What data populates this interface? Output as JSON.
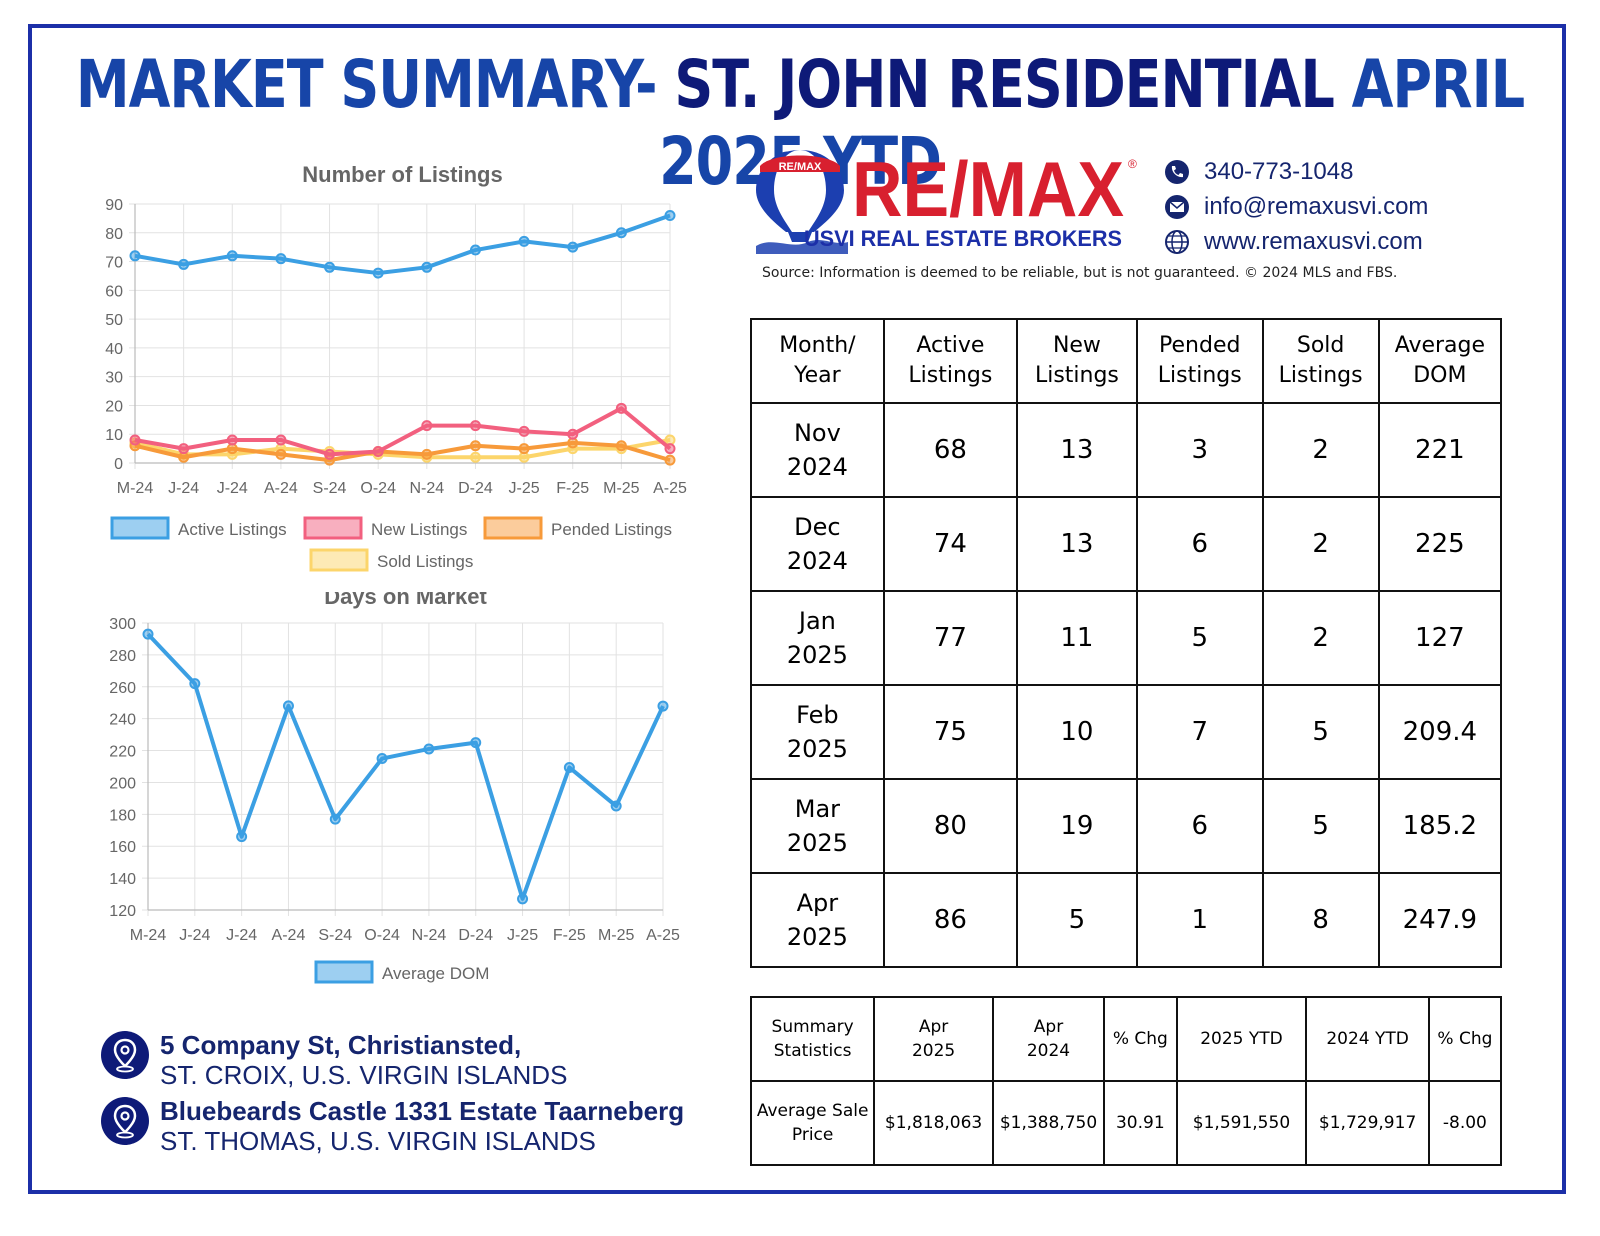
{
  "title": {
    "part1": "MARKET SUMMARY- ",
    "part2": "ST. JOHN RESIDENTIAL ",
    "part3": "APRIL 2025 YTD"
  },
  "logo": {
    "brand": "RE/MAX",
    "balloon_text": "RE/MAX",
    "registered": "®",
    "tagline": "USVI REAL ESTATE BROKERS"
  },
  "contacts": {
    "phone": "340-773-1048",
    "email": "info@remaxusvi.com",
    "website": "www.remaxusvi.com"
  },
  "source": "Source: Information is deemed to be reliable, but is not guaranteed. © 2024 MLS and FBS.",
  "chart_data": [
    {
      "type": "line",
      "title": "Number of Listings",
      "categories": [
        "M-24",
        "J-24",
        "J-24",
        "A-24",
        "S-24",
        "O-24",
        "N-24",
        "D-24",
        "J-25",
        "F-25",
        "M-25",
        "A-25"
      ],
      "ylim": [
        0,
        90
      ],
      "yticks": [
        0,
        10,
        20,
        30,
        40,
        50,
        60,
        70,
        80,
        90
      ],
      "grid": true,
      "legend": "bottom",
      "series": [
        {
          "name": "Active Listings",
          "color": "#3b9fe3",
          "values": [
            72,
            69,
            72,
            71,
            68,
            66,
            68,
            74,
            77,
            75,
            80,
            86
          ]
        },
        {
          "name": "New Listings",
          "color": "#f2607f",
          "values": [
            8,
            5,
            8,
            8,
            3,
            4,
            13,
            13,
            11,
            10,
            19,
            5
          ]
        },
        {
          "name": "Pended Listings",
          "color": "#f79a3a",
          "values": [
            6,
            2,
            5,
            3,
            1,
            4,
            3,
            6,
            5,
            7,
            6,
            1
          ]
        },
        {
          "name": "Sold Listings",
          "color": "#fcd56b",
          "values": [
            7,
            3,
            3,
            5,
            4,
            3,
            2,
            2,
            2,
            5,
            5,
            8
          ]
        }
      ]
    },
    {
      "type": "line",
      "title": "Days on Market",
      "categories": [
        "M-24",
        "J-24",
        "J-24",
        "A-24",
        "S-24",
        "O-24",
        "N-24",
        "D-24",
        "J-25",
        "F-25",
        "M-25",
        "A-25"
      ],
      "ylim": [
        120,
        300
      ],
      "yticks": [
        120,
        140,
        160,
        180,
        200,
        220,
        240,
        260,
        280,
        300
      ],
      "grid": true,
      "legend": "bottom",
      "series": [
        {
          "name": "Average DOM",
          "color": "#3b9fe3",
          "values": [
            293,
            262,
            166,
            248,
            177,
            215,
            221,
            225,
            127,
            209.4,
            185.2,
            247.9
          ]
        }
      ]
    }
  ],
  "table": {
    "headers": [
      [
        "Month/",
        "Year"
      ],
      [
        "Active",
        "Listings"
      ],
      [
        "New",
        "Listings"
      ],
      [
        "Pended",
        "Listings"
      ],
      [
        "Sold",
        "Listings"
      ],
      [
        "Average",
        "DOM"
      ]
    ],
    "rows": [
      {
        "m1": "Nov",
        "m2": "2024",
        "active": "68",
        "new": "13",
        "pended": "3",
        "sold": "2",
        "dom": "221"
      },
      {
        "m1": "Dec",
        "m2": "2024",
        "active": "74",
        "new": "13",
        "pended": "6",
        "sold": "2",
        "dom": "225"
      },
      {
        "m1": "Jan",
        "m2": "2025",
        "active": "77",
        "new": "11",
        "pended": "5",
        "sold": "2",
        "dom": "127"
      },
      {
        "m1": "Feb",
        "m2": "2025",
        "active": "75",
        "new": "10",
        "pended": "7",
        "sold": "5",
        "dom": "209.4"
      },
      {
        "m1": "Mar",
        "m2": "2025",
        "active": "80",
        "new": "19",
        "pended": "6",
        "sold": "5",
        "dom": "185.2"
      },
      {
        "m1": "Apr",
        "m2": "2025",
        "active": "86",
        "new": "5",
        "pended": "1",
        "sold": "8",
        "dom": "247.9"
      }
    ]
  },
  "summary": {
    "headers": [
      [
        "Summary",
        "Statistics"
      ],
      [
        "Apr",
        "2025"
      ],
      [
        "Apr",
        "2024"
      ],
      [
        "% Chg",
        ""
      ],
      [
        "2025 YTD",
        ""
      ],
      [
        "2024 YTD",
        ""
      ],
      [
        "% Chg",
        ""
      ]
    ],
    "row": {
      "label1": "Average Sale",
      "label2": "Price",
      "apr2025": "$1,818,063",
      "apr2024": "$1,388,750",
      "chg1": "30.91",
      "ytd2025": "$1,591,550",
      "ytd2024": "$1,729,917",
      "chg2": "-8.00"
    }
  },
  "addresses": [
    {
      "line1": "5 Company St, Christiansted,",
      "line2": "ST. CROIX, U.S. VIRGIN ISLANDS"
    },
    {
      "line1": "Bluebeards Castle 1331 Estate Taarneberg",
      "line2": "ST. THOMAS, U.S. VIRGIN ISLANDS"
    }
  ]
}
